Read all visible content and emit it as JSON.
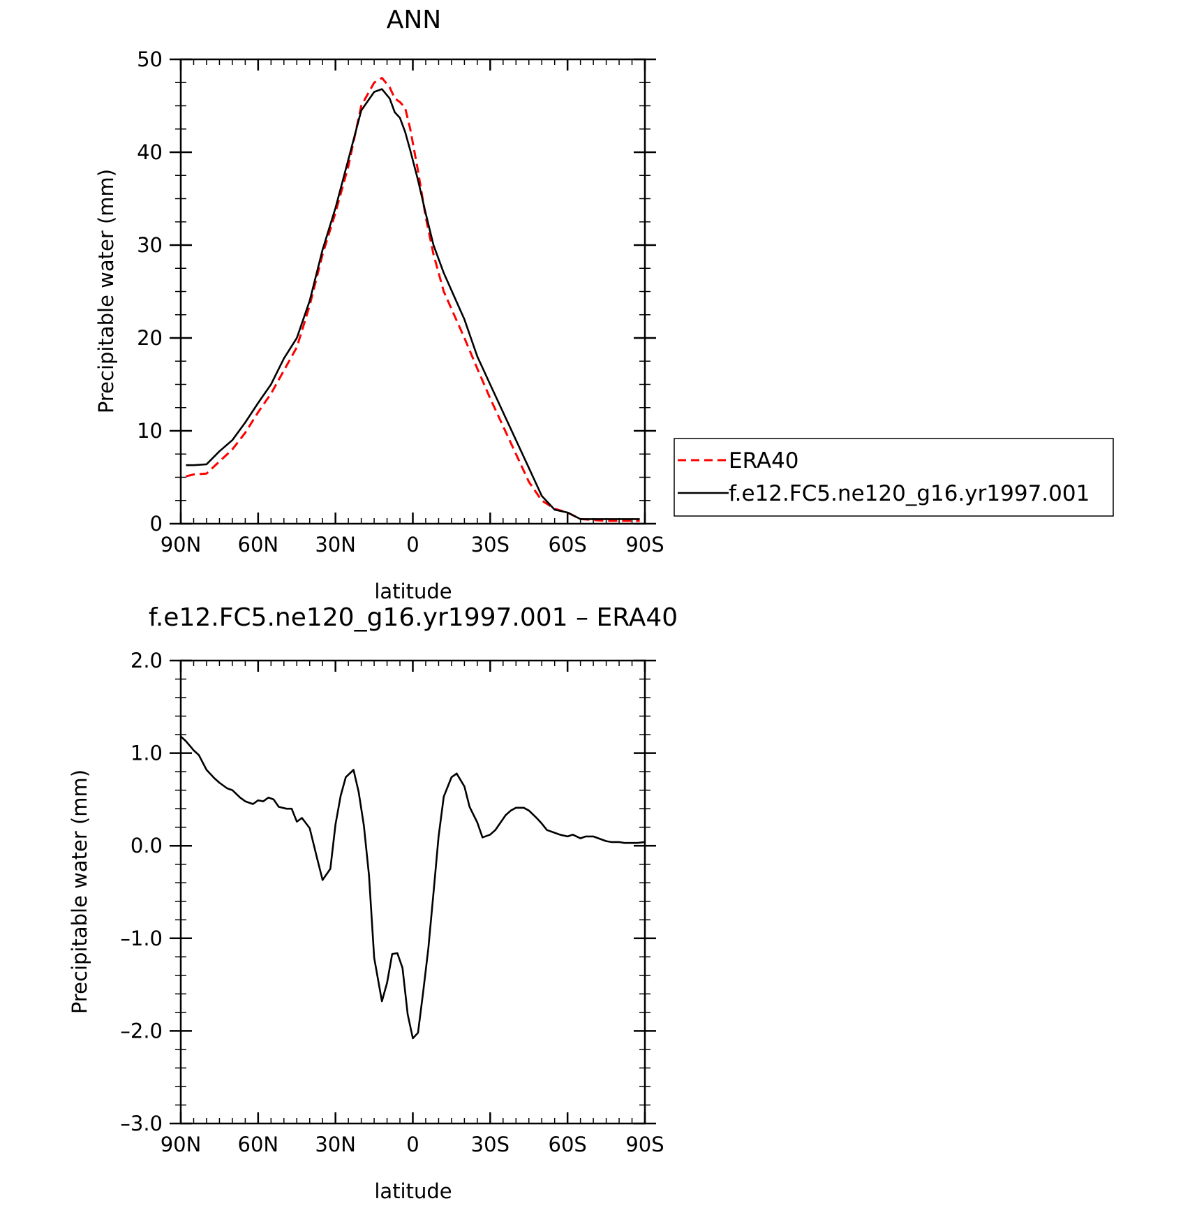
{
  "chart_data": [
    {
      "type": "line",
      "title": "ANN",
      "xlabel": "latitude",
      "ylabel": "Precipitable water (mm)",
      "xlim": [
        90,
        -90
      ],
      "ylim": [
        0,
        50
      ],
      "x_tick_values": [
        90,
        60,
        30,
        0,
        -30,
        -60,
        -90
      ],
      "x_tick_labels": [
        "90N",
        "60N",
        "30N",
        "0",
        "30S",
        "60S",
        "90S"
      ],
      "y_tick_values": [
        0,
        10,
        20,
        30,
        40,
        50
      ],
      "y_tick_labels": [
        "0",
        "10",
        "20",
        "30",
        "40",
        "50"
      ],
      "grid": false,
      "legend": {
        "position": "right",
        "entries": [
          "ERA40",
          "f.e12.FC5.ne120_g16.yr1997.001"
        ]
      },
      "series": [
        {
          "name": "ERA40",
          "color": "#ff0000",
          "dash": "dashed",
          "x": [
            88,
            85,
            80,
            75,
            70,
            65,
            60,
            55,
            50,
            45,
            40,
            35,
            30,
            25,
            20,
            15,
            12,
            9,
            7,
            5,
            3,
            1,
            -2,
            -5,
            -8,
            -12,
            -16,
            -20,
            -25,
            -30,
            -35,
            -40,
            -45,
            -50,
            -55,
            -60,
            -65,
            -70,
            -75,
            -80,
            -85,
            -88
          ],
          "y": [
            5.1,
            5.3,
            5.4,
            6.7,
            8.0,
            9.8,
            12.0,
            14.0,
            16.5,
            19.0,
            23.5,
            29.0,
            33.5,
            38.5,
            45.0,
            47.5,
            48.0,
            47.0,
            45.8,
            45.4,
            44.8,
            42.5,
            38.0,
            33.0,
            29.0,
            25.0,
            22.5,
            20.0,
            16.7,
            13.5,
            10.5,
            7.5,
            4.5,
            2.5,
            1.6,
            1.2,
            0.5,
            0.4,
            0.3,
            0.3,
            0.3,
            0.3
          ]
        },
        {
          "name": "f.e12.FC5.ne120_g16.yr1997.001",
          "color": "#000000",
          "dash": "solid",
          "x": [
            88,
            85,
            80,
            75,
            70,
            65,
            60,
            55,
            50,
            45,
            40,
            35,
            30,
            25,
            20,
            15,
            12,
            9,
            7,
            5,
            3,
            1,
            -2,
            -5,
            -8,
            -12,
            -16,
            -20,
            -25,
            -30,
            -35,
            -40,
            -45,
            -50,
            -55,
            -60,
            -65,
            -70,
            -75,
            -80,
            -85,
            -88
          ],
          "y": [
            6.3,
            6.3,
            6.4,
            7.8,
            9.0,
            10.9,
            13.0,
            15.0,
            17.8,
            20.0,
            24.0,
            29.5,
            34.0,
            39.2,
            44.5,
            46.5,
            46.8,
            45.8,
            44.3,
            43.7,
            42.2,
            40.2,
            37.0,
            33.4,
            30.0,
            27.0,
            24.5,
            22.0,
            18.0,
            15.0,
            12.0,
            9.0,
            6.0,
            3.0,
            1.5,
            1.2,
            0.5,
            0.5,
            0.5,
            0.5,
            0.5,
            0.5
          ]
        }
      ]
    },
    {
      "type": "line",
      "title": "f.e12.FC5.ne120_g16.yr1997.001 – ERA40",
      "xlabel": "latitude",
      "ylabel": "Precipitable water (mm)",
      "xlim": [
        90,
        -90
      ],
      "ylim": [
        -3.0,
        2.0
      ],
      "x_tick_values": [
        90,
        60,
        30,
        0,
        -30,
        -60,
        -90
      ],
      "x_tick_labels": [
        "90N",
        "60N",
        "30N",
        "0",
        "30S",
        "60S",
        "90S"
      ],
      "y_tick_values": [
        2.0,
        1.0,
        0.0,
        -1.0,
        -2.0,
        -3.0
      ],
      "y_tick_labels": [
        "2.0",
        "1.0",
        "0.0",
        "–1.0",
        "–2.0",
        "–3.0"
      ],
      "grid": false,
      "series": [
        {
          "color": "#000000",
          "dash": "solid",
          "x": [
            90,
            88,
            85,
            83,
            80,
            77,
            75,
            72,
            70,
            67,
            65,
            62,
            60,
            58,
            56,
            54,
            52,
            49,
            47,
            45,
            43,
            40,
            37,
            35,
            32,
            30,
            28,
            26,
            23,
            21,
            19,
            17,
            15,
            12,
            10,
            8,
            6,
            4,
            2,
            0,
            -2,
            -4,
            -6,
            -8,
            -10,
            -12,
            -15,
            -17,
            -20,
            -22,
            -25,
            -27,
            -30,
            -32,
            -36,
            -38,
            -40,
            -43,
            -45,
            -48,
            -50,
            -52,
            -55,
            -57,
            -60,
            -62,
            -65,
            -67,
            -70,
            -72,
            -75,
            -77,
            -80,
            -82,
            -85,
            -87,
            -90
          ],
          "y": [
            1.18,
            1.13,
            1.03,
            0.98,
            0.82,
            0.73,
            0.68,
            0.62,
            0.6,
            0.52,
            0.48,
            0.45,
            0.49,
            0.48,
            0.52,
            0.5,
            0.42,
            0.4,
            0.4,
            0.26,
            0.3,
            0.19,
            -0.15,
            -0.37,
            -0.25,
            0.23,
            0.54,
            0.74,
            0.82,
            0.58,
            0.22,
            -0.32,
            -1.21,
            -1.68,
            -1.48,
            -1.17,
            -1.16,
            -1.32,
            -1.82,
            -2.08,
            -2.02,
            -1.58,
            -1.11,
            -0.51,
            0.1,
            0.53,
            0.74,
            0.78,
            0.64,
            0.42,
            0.25,
            0.09,
            0.12,
            0.17,
            0.33,
            0.38,
            0.41,
            0.41,
            0.38,
            0.3,
            0.24,
            0.17,
            0.14,
            0.12,
            0.1,
            0.12,
            0.08,
            0.1,
            0.1,
            0.08,
            0.05,
            0.04,
            0.04,
            0.03,
            0.03,
            0.03,
            0.04
          ]
        }
      ]
    }
  ]
}
